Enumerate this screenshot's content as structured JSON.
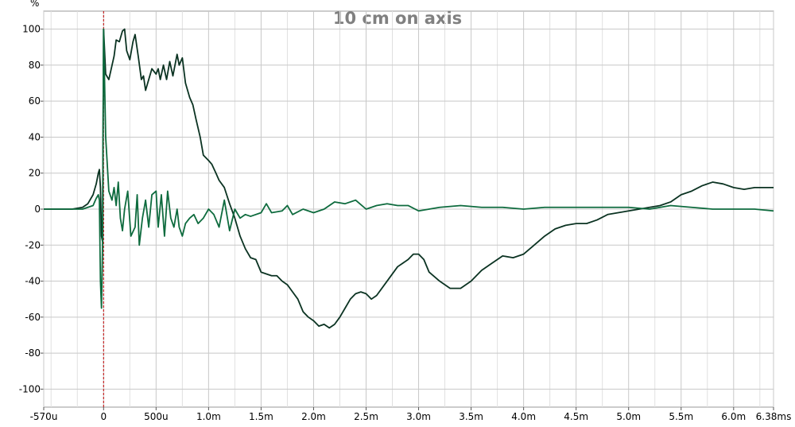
{
  "chart_data": {
    "type": "line",
    "title": "10 cm on axis",
    "y_label": "%",
    "xlim": [
      -0.57,
      6.38
    ],
    "ylim": [
      -110,
      110
    ],
    "xticks": [
      {
        "value": -0.57,
        "label": "-570u"
      },
      0,
      {
        "value": 0.5,
        "label": "500u"
      },
      {
        "value": 1,
        "label": "1.0m"
      },
      {
        "value": 1.5,
        "label": "1.5m"
      },
      {
        "value": 2,
        "label": "2.0m"
      },
      {
        "value": 2.5,
        "label": "2.5m"
      },
      {
        "value": 3,
        "label": "3.0m"
      },
      {
        "value": 3.5,
        "label": "3.5m"
      },
      {
        "value": 4,
        "label": "4.0m"
      },
      {
        "value": 4.5,
        "label": "4.5m"
      },
      {
        "value": 5,
        "label": "5.0m"
      },
      {
        "value": 5.5,
        "label": "5.5m"
      },
      {
        "value": 6,
        "label": "6.0m"
      },
      {
        "value": 6.38,
        "label": "6.38ms"
      }
    ],
    "xminorticks": [
      -0.5,
      -0.25,
      0.25,
      0.75,
      1.25,
      1.75,
      2.25,
      2.75,
      3.25,
      3.75,
      4.25,
      4.75,
      5.25,
      5.75,
      6.25
    ],
    "yticks": [
      -100,
      -80,
      -60,
      -40,
      -20,
      0,
      20,
      40,
      60,
      80,
      100
    ],
    "grid": true,
    "cursor_x": 0,
    "cursor_color": "#c00000",
    "series": [
      {
        "color": "#0b3322",
        "x": [
          -0.57,
          -0.3,
          -0.2,
          -0.15,
          -0.1,
          -0.07,
          -0.05,
          -0.04,
          -0.03,
          -0.02,
          -0.01,
          0,
          0.02,
          0.05,
          0.1,
          0.12,
          0.15,
          0.18,
          0.2,
          0.22,
          0.25,
          0.28,
          0.3,
          0.33,
          0.36,
          0.38,
          0.4,
          0.43,
          0.46,
          0.5,
          0.52,
          0.54,
          0.57,
          0.6,
          0.63,
          0.66,
          0.7,
          0.72,
          0.75,
          0.78,
          0.82,
          0.85,
          0.88,
          0.92,
          0.95,
          1,
          1.03,
          1.07,
          1.1,
          1.15,
          1.2,
          1.25,
          1.3,
          1.35,
          1.4,
          1.45,
          1.5,
          1.55,
          1.6,
          1.65,
          1.7,
          1.75,
          1.8,
          1.85,
          1.9,
          1.95,
          2,
          2.05,
          2.1,
          2.15,
          2.2,
          2.25,
          2.3,
          2.35,
          2.4,
          2.45,
          2.5,
          2.55,
          2.6,
          2.7,
          2.8,
          2.9,
          2.95,
          3,
          3.05,
          3.1,
          3.2,
          3.3,
          3.4,
          3.5,
          3.6,
          3.7,
          3.8,
          3.9,
          4,
          4.1,
          4.2,
          4.3,
          4.4,
          4.5,
          4.6,
          4.7,
          4.8,
          4.9,
          5,
          5.1,
          5.2,
          5.3,
          5.4,
          5.5,
          5.6,
          5.7,
          5.8,
          5.9,
          6,
          6.1,
          6.2,
          6.3,
          6.38
        ],
        "values": [
          0,
          0,
          1,
          3,
          8,
          14,
          20,
          22,
          12,
          -15,
          -18,
          100,
          75,
          72,
          85,
          94,
          93,
          99,
          100,
          88,
          83,
          93,
          97,
          85,
          72,
          74,
          66,
          72,
          78,
          75,
          78,
          72,
          80,
          72,
          82,
          74,
          86,
          80,
          84,
          70,
          62,
          58,
          50,
          40,
          30,
          27,
          25,
          20,
          16,
          12,
          3,
          -5,
          -15,
          -22,
          -27,
          -28,
          -35,
          -36,
          -37,
          -37,
          -40,
          -42,
          -46,
          -50,
          -57,
          -60,
          -62,
          -65,
          -64,
          -66,
          -64,
          -60,
          -55,
          -50,
          -47,
          -46,
          -47,
          -50,
          -48,
          -40,
          -32,
          -28,
          -25,
          -25,
          -28,
          -35,
          -40,
          -44,
          -44,
          -40,
          -34,
          -30,
          -26,
          -27,
          -25,
          -20,
          -15,
          -11,
          -9,
          -8,
          -8,
          -6,
          -3,
          -2,
          -1,
          0,
          1,
          2,
          4,
          8,
          10,
          13,
          15,
          14,
          12,
          11,
          12,
          12,
          12
        ]
      },
      {
        "color": "#0e6b3e",
        "x": [
          -0.57,
          -0.2,
          -0.1,
          -0.07,
          -0.05,
          -0.04,
          -0.03,
          -0.02,
          -0.01,
          0,
          0.02,
          0.05,
          0.08,
          0.1,
          0.12,
          0.14,
          0.16,
          0.18,
          0.2,
          0.23,
          0.26,
          0.3,
          0.32,
          0.34,
          0.37,
          0.4,
          0.43,
          0.46,
          0.5,
          0.52,
          0.55,
          0.58,
          0.61,
          0.64,
          0.67,
          0.7,
          0.72,
          0.75,
          0.78,
          0.82,
          0.86,
          0.9,
          0.95,
          1,
          1.05,
          1.1,
          1.15,
          1.2,
          1.25,
          1.3,
          1.35,
          1.4,
          1.5,
          1.55,
          1.6,
          1.7,
          1.75,
          1.8,
          1.9,
          2,
          2.1,
          2.2,
          2.3,
          2.4,
          2.5,
          2.6,
          2.7,
          2.8,
          2.9,
          3,
          3.2,
          3.4,
          3.6,
          3.8,
          4,
          4.2,
          4.4,
          4.6,
          4.8,
          5,
          5.2,
          5.4,
          5.6,
          5.8,
          6,
          6.2,
          6.38
        ],
        "values": [
          0,
          0,
          2,
          6,
          8,
          5,
          -40,
          -55,
          -20,
          100,
          40,
          10,
          5,
          12,
          2,
          15,
          -5,
          -12,
          0,
          10,
          -15,
          -10,
          8,
          -20,
          -5,
          5,
          -10,
          8,
          10,
          -10,
          8,
          -15,
          10,
          -5,
          -10,
          0,
          -10,
          -15,
          -8,
          -5,
          -3,
          -8,
          -5,
          0,
          -3,
          -10,
          5,
          -12,
          0,
          -5,
          -3,
          -4,
          -2,
          3,
          -2,
          -1,
          2,
          -3,
          0,
          -2,
          0,
          4,
          3,
          5,
          0,
          2,
          3,
          2,
          2,
          -1,
          1,
          2,
          1,
          1,
          0,
          1,
          1,
          1,
          1,
          1,
          0,
          2,
          1,
          0,
          0,
          0,
          -1
        ]
      }
    ]
  }
}
